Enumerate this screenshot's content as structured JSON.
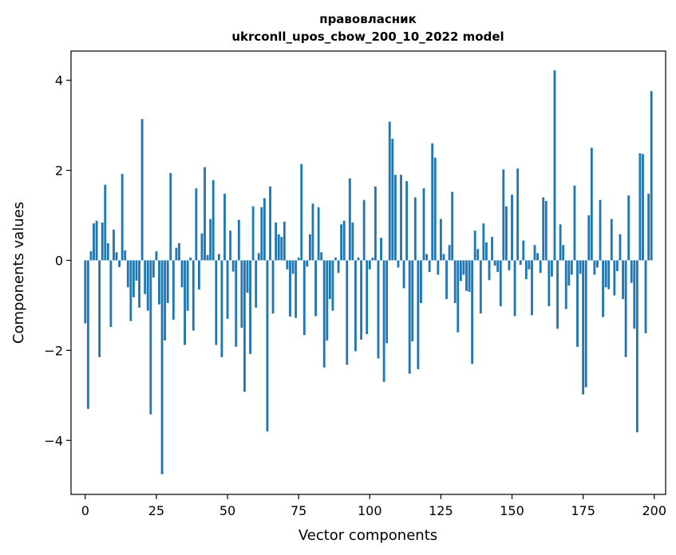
{
  "chart_data": {
    "type": "bar",
    "title_line1": "правовласник",
    "title_line2": "ukrconll_upos_cbow_200_10_2022 model",
    "xlabel": "Vector components",
    "ylabel": "Components values",
    "xlim": [
      -5,
      204
    ],
    "ylim": [
      -5.2,
      4.65
    ],
    "xticks": [
      0,
      25,
      50,
      75,
      100,
      125,
      150,
      175,
      200
    ],
    "yticks": [
      -4,
      -2,
      0,
      2,
      4
    ],
    "ytick_labels": [
      "−4",
      "−2",
      "0",
      "2",
      "4"
    ],
    "bar_color": "#1f77b4",
    "grid": false,
    "x": [
      0,
      1,
      2,
      3,
      4,
      5,
      6,
      7,
      8,
      9,
      10,
      11,
      12,
      13,
      14,
      15,
      16,
      17,
      18,
      19,
      20,
      21,
      22,
      23,
      24,
      25,
      26,
      27,
      28,
      29,
      30,
      31,
      32,
      33,
      34,
      35,
      36,
      37,
      38,
      39,
      40,
      41,
      42,
      43,
      44,
      45,
      46,
      47,
      48,
      49,
      50,
      51,
      52,
      53,
      54,
      55,
      56,
      57,
      58,
      59,
      60,
      61,
      62,
      63,
      64,
      65,
      66,
      67,
      68,
      69,
      70,
      71,
      72,
      73,
      74,
      75,
      76,
      77,
      78,
      79,
      80,
      81,
      82,
      83,
      84,
      85,
      86,
      87,
      88,
      89,
      90,
      91,
      92,
      93,
      94,
      95,
      96,
      97,
      98,
      99,
      100,
      101,
      102,
      103,
      104,
      105,
      106,
      107,
      108,
      109,
      110,
      111,
      112,
      113,
      114,
      115,
      116,
      117,
      118,
      119,
      120,
      121,
      122,
      123,
      124,
      125,
      126,
      127,
      128,
      129,
      130,
      131,
      132,
      133,
      134,
      135,
      136,
      137,
      138,
      139,
      140,
      141,
      142,
      143,
      144,
      145,
      146,
      147,
      148,
      149,
      150,
      151,
      152,
      153,
      154,
      155,
      156,
      157,
      158,
      159,
      160,
      161,
      162,
      163,
      164,
      165,
      166,
      167,
      168,
      169,
      170,
      171,
      172,
      173,
      174,
      175,
      176,
      177,
      178,
      179,
      180,
      181,
      182,
      183,
      184,
      185,
      186,
      187,
      188,
      189,
      190,
      191,
      192,
      193,
      194,
      195,
      196,
      197,
      198,
      199
    ],
    "values": [
      -1.4,
      -3.3,
      0.2,
      0.82,
      0.88,
      -2.15,
      0.84,
      1.68,
      0.38,
      -1.48,
      0.68,
      0.18,
      -0.15,
      1.92,
      0.22,
      -0.6,
      -1.35,
      -0.82,
      -0.45,
      -1.05,
      3.14,
      -0.75,
      -1.12,
      -3.42,
      -0.38,
      0.2,
      -0.98,
      -4.75,
      -1.78,
      -0.95,
      1.94,
      -1.32,
      0.28,
      0.38,
      -0.6,
      -1.88,
      -1.12,
      0.06,
      -1.56,
      1.6,
      -0.65,
      0.6,
      2.07,
      0.12,
      0.92,
      1.78,
      -1.88,
      0.14,
      -2.15,
      1.48,
      -1.3,
      0.66,
      -0.25,
      -1.92,
      0.9,
      -1.5,
      -2.92,
      -0.72,
      -2.08,
      1.2,
      -1.05,
      0.16,
      1.18,
      1.38,
      -3.8,
      1.64,
      -1.18,
      0.84,
      0.58,
      0.52,
      0.86,
      -0.2,
      -1.25,
      -0.3,
      -1.28,
      0.06,
      2.14,
      -1.66,
      -0.14,
      0.58,
      1.26,
      -1.24,
      1.18,
      0.18,
      -2.38,
      -1.78,
      -0.86,
      -1.12,
      0.06,
      -0.28,
      0.8,
      0.88,
      -2.32,
      1.82,
      0.84,
      -2.02,
      0.06,
      -1.76,
      1.34,
      -1.64,
      -0.2,
      0.06,
      1.64,
      -2.18,
      0.5,
      -2.7,
      -1.84,
      3.08,
      2.7,
      1.9,
      -0.16,
      1.9,
      -0.62,
      1.76,
      -2.52,
      -1.8,
      1.4,
      -2.42,
      -0.95,
      1.6,
      0.14,
      -0.26,
      2.6,
      2.28,
      -0.32,
      0.92,
      0.14,
      -0.86,
      0.34,
      1.52,
      -0.95,
      -1.6,
      -0.46,
      -0.32,
      -0.68,
      -0.7,
      -2.3,
      0.66,
      0.25,
      -1.18,
      0.82,
      0.4,
      -0.44,
      0.52,
      -0.12,
      -0.26,
      -1.02,
      2.02,
      1.2,
      -0.22,
      1.46,
      -1.24,
      2.04,
      -0.1,
      0.44,
      -0.42,
      -0.2,
      -1.22,
      0.34,
      0.16,
      -0.28,
      1.4,
      1.32,
      -1.02,
      -0.36,
      4.22,
      -1.52,
      0.8,
      0.34,
      -1.08,
      -0.56,
      -0.32,
      1.66,
      -1.92,
      -0.3,
      -2.98,
      -2.82,
      1.0,
      2.5,
      -0.32,
      -0.16,
      1.34,
      -1.26,
      -0.6,
      -0.64,
      0.92,
      -0.78,
      -0.24,
      0.58,
      -0.86,
      -2.15,
      1.44,
      -0.5,
      -1.52,
      -3.82,
      2.38,
      2.36,
      -1.62,
      1.48,
      3.76
    ]
  }
}
